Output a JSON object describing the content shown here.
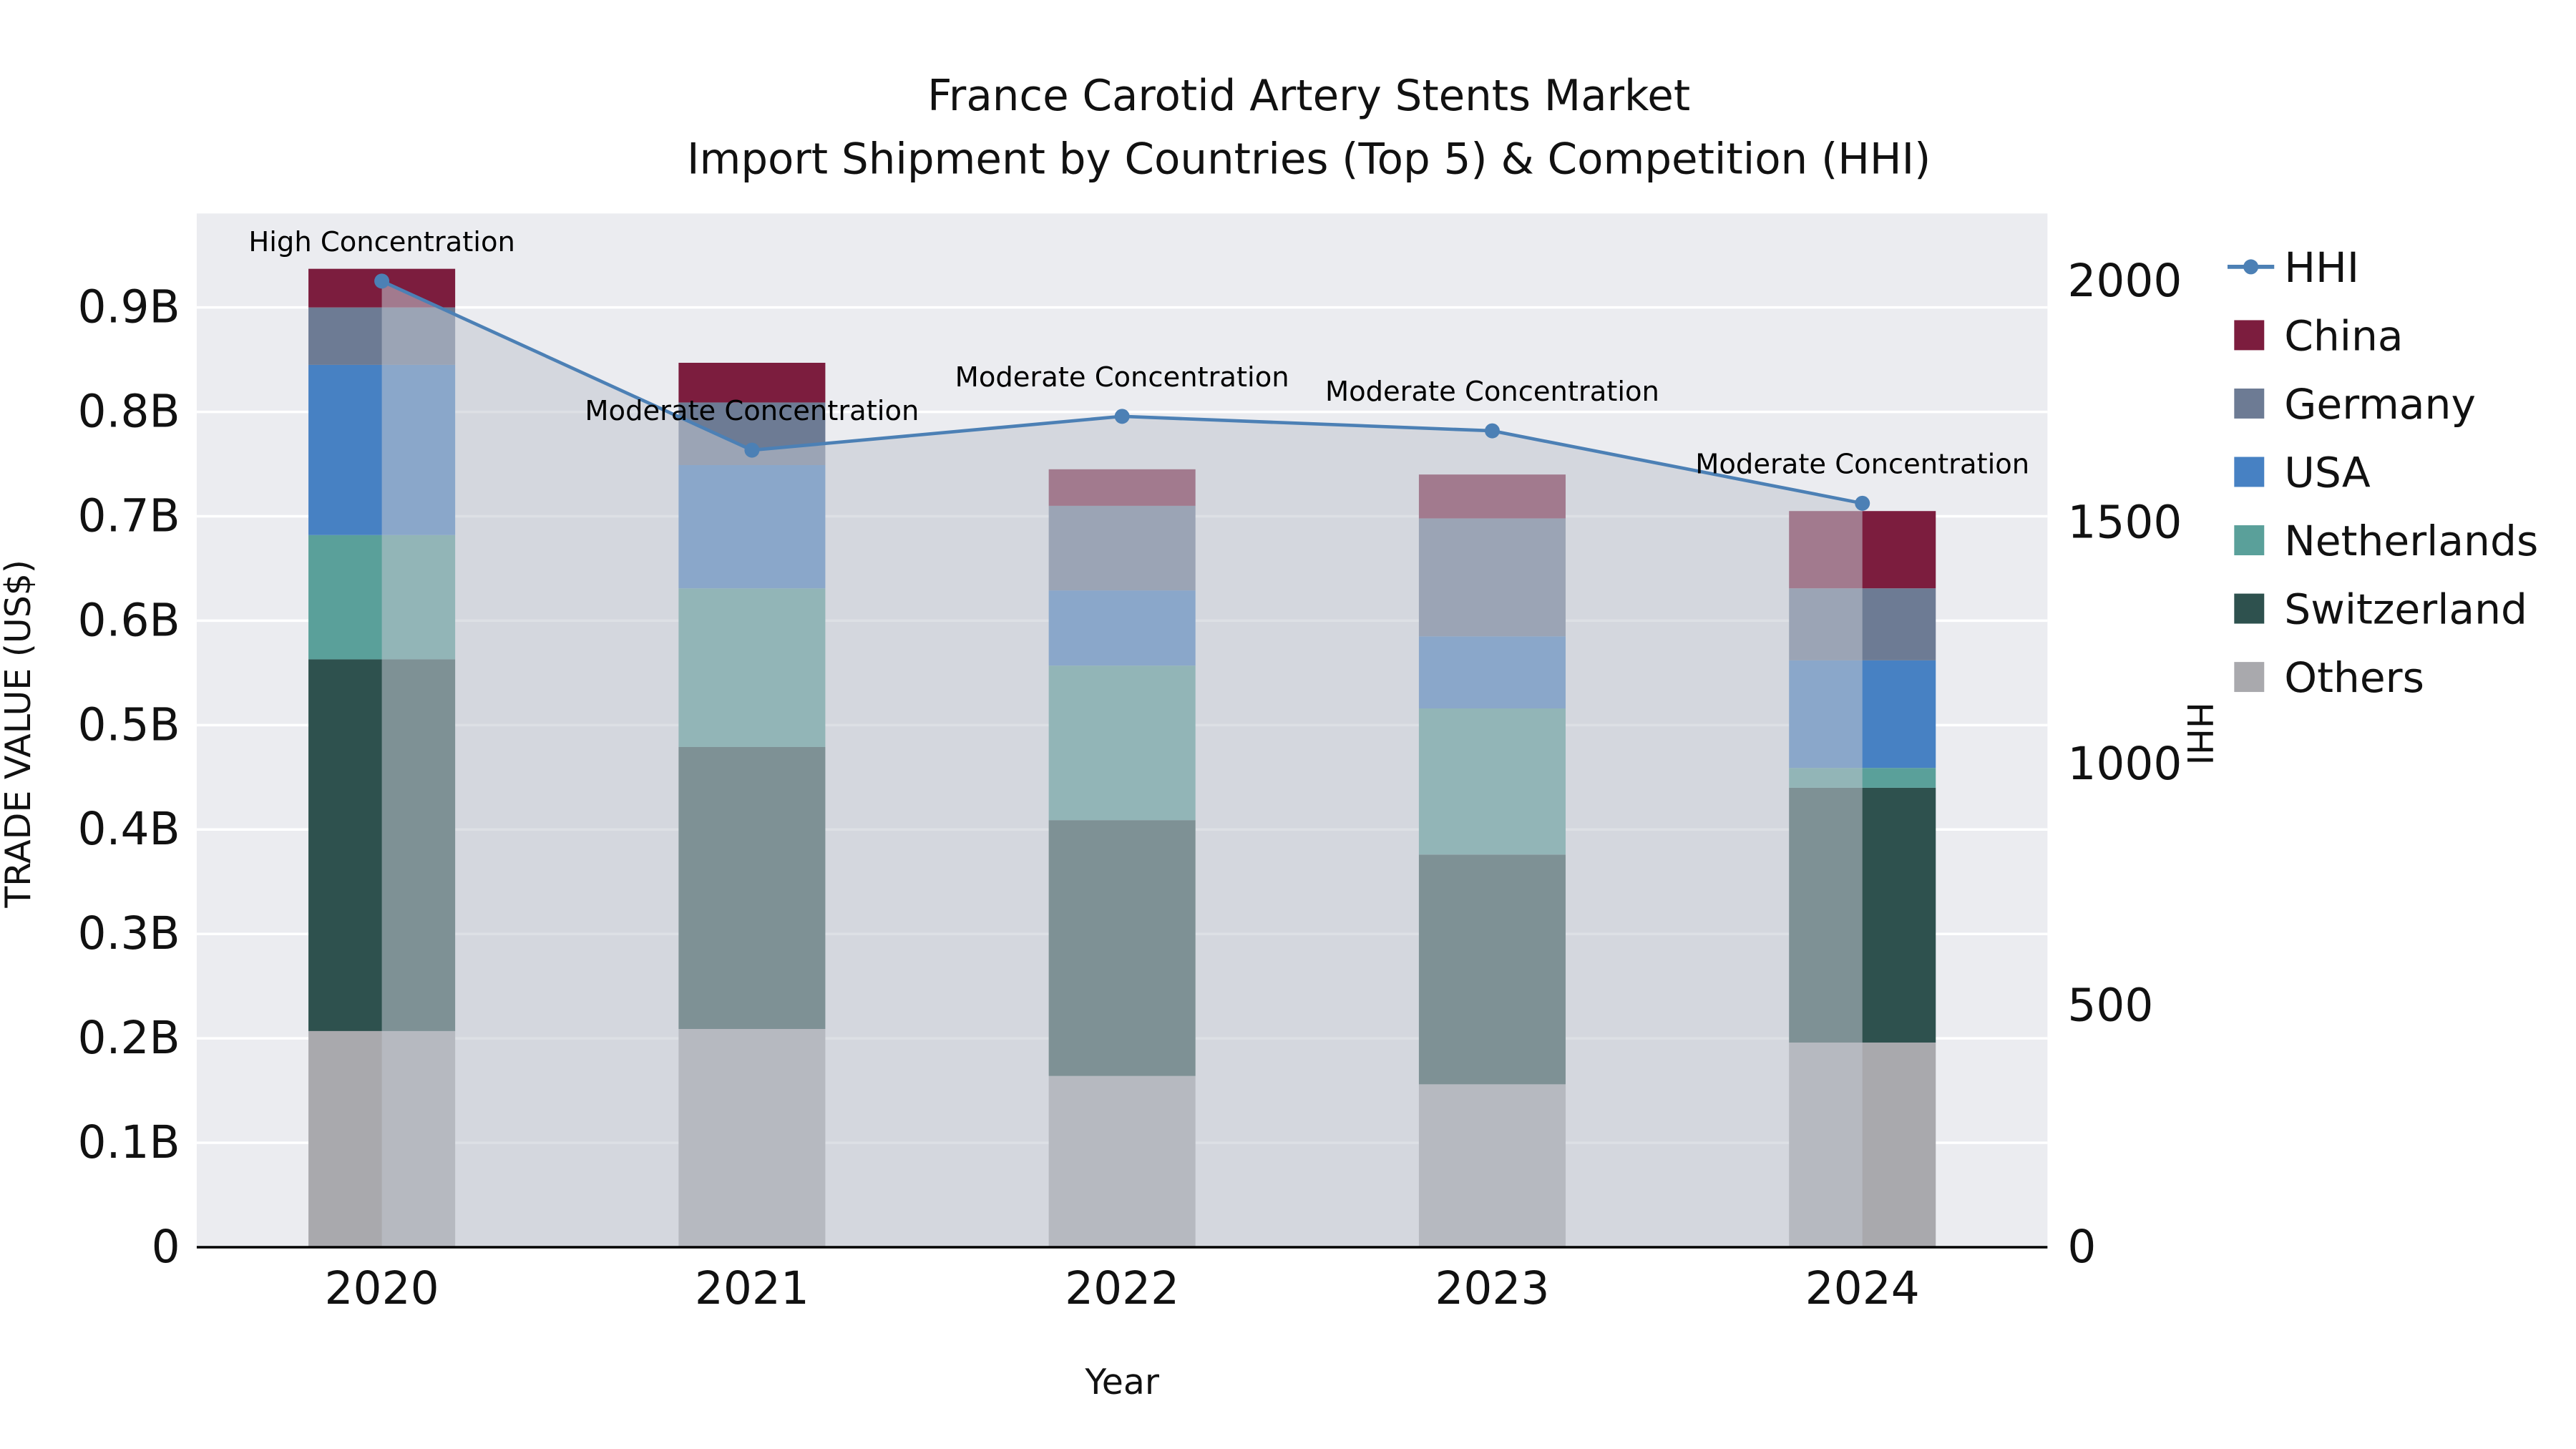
{
  "chart_data": {
    "type": "combo_stacked_bar_line",
    "title_lines": [
      "France Carotid Artery Stents Market",
      "Import Shipment by Countries (Top 5) & Competition (HHI)"
    ],
    "xlabel": "Year",
    "ylabel_left": "TRADE VALUE (US$)",
    "ylabel_right": "HHI",
    "categories": [
      "2020",
      "2021",
      "2022",
      "2023",
      "2024"
    ],
    "bar_unit": "USD billions",
    "series": [
      {
        "name": "Others",
        "color": "#a9a9ad",
        "values": [
          0.207,
          0.209,
          0.164,
          0.156,
          0.196
        ]
      },
      {
        "name": "Switzerland",
        "color": "#2e514e",
        "values": [
          0.356,
          0.27,
          0.245,
          0.22,
          0.244
        ]
      },
      {
        "name": "Netherlands",
        "color": "#5aa09a",
        "values": [
          0.119,
          0.152,
          0.148,
          0.14,
          0.019
        ]
      },
      {
        "name": "USA",
        "color": "#4781c3",
        "values": [
          0.163,
          0.118,
          0.072,
          0.069,
          0.103
        ]
      },
      {
        "name": "Germany",
        "color": "#6d7b94",
        "values": [
          0.055,
          0.06,
          0.081,
          0.113,
          0.069
        ]
      },
      {
        "name": "China",
        "color": "#7c1d3e",
        "values": [
          0.037,
          0.038,
          0.035,
          0.042,
          0.074
        ]
      }
    ],
    "hhi": {
      "name": "HHI",
      "color": "#4c80b5",
      "values": [
        2000,
        1650,
        1720,
        1690,
        1540
      ],
      "fill_under_line": true
    },
    "annotations": [
      "High Concentration",
      "Moderate Concentration",
      "Moderate Concentration",
      "Moderate Concentration",
      "Moderate Concentration"
    ],
    "axes": {
      "y_left_ticks": [
        "0",
        "0.1B",
        "0.2B",
        "0.3B",
        "0.4B",
        "0.5B",
        "0.6B",
        "0.7B",
        "0.8B",
        "0.9B"
      ],
      "y_left_tick_values": [
        0,
        0.1,
        0.2,
        0.3,
        0.4,
        0.5,
        0.6,
        0.7,
        0.8,
        0.9
      ],
      "y_left_range": [
        0,
        0.99
      ],
      "y_right_ticks": [
        "0",
        "500",
        "1000",
        "1500",
        "2000"
      ],
      "y_right_tick_values": [
        0,
        500,
        1000,
        1500,
        2000
      ],
      "y_right_range": [
        0,
        2140
      ],
      "grid": "horizontal-only"
    },
    "legend_position": "right",
    "colors": {
      "plot_bg": "#ebecf0",
      "grid": "#ffffff",
      "hhi_fill": "rgba(193,199,208,0.55)",
      "axis_line": "#000000"
    }
  }
}
